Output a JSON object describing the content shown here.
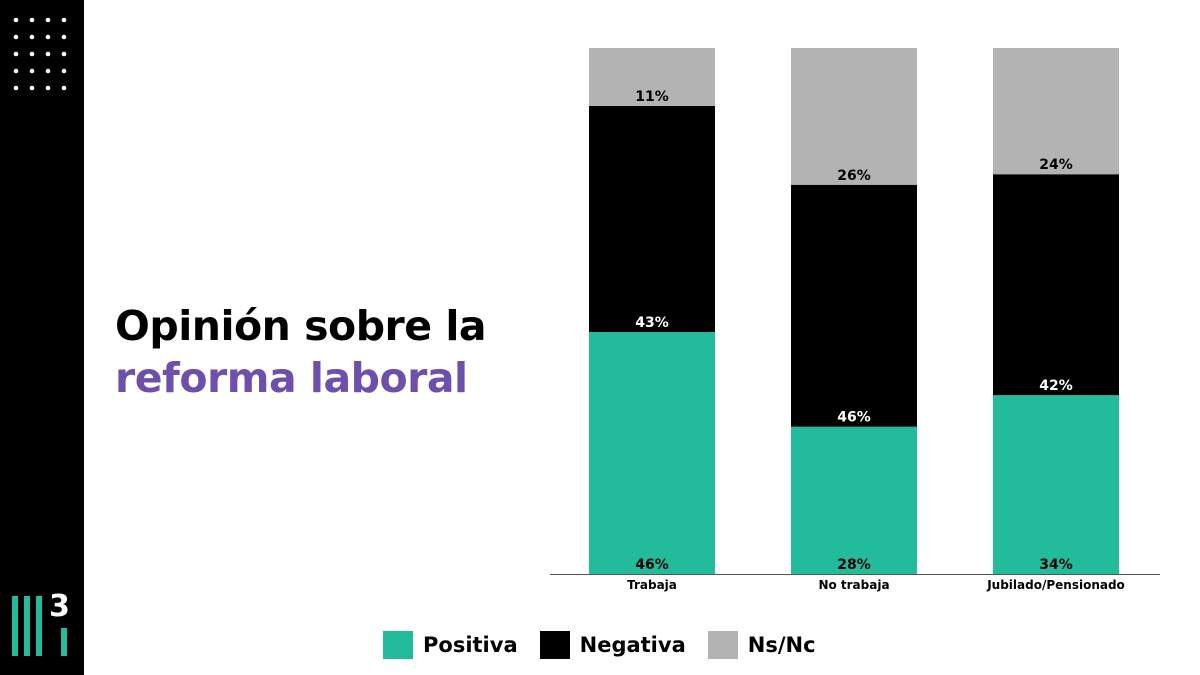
{
  "title": {
    "line1": "Opinión sobre la",
    "line2": "reforma laboral"
  },
  "brand": {
    "logo_number": "3",
    "accent_color": "#6e4fab",
    "sidebar_color": "#000000"
  },
  "legend": [
    {
      "label": "Positiva",
      "color": "#22bb9c"
    },
    {
      "label": "Negativa",
      "color": "#000000"
    },
    {
      "label": "Ns/Nc",
      "color": "#b3b3b3"
    }
  ],
  "chart_data": {
    "type": "bar",
    "stacked": true,
    "categories": [
      "Trabaja",
      "No trabaja",
      "Jubilado/Pensionado"
    ],
    "series": [
      {
        "name": "Positiva",
        "color": "#22bb9c",
        "label_color": "#000000",
        "values": [
          46,
          28,
          34
        ],
        "labels": [
          "46%",
          "28%",
          "34%"
        ]
      },
      {
        "name": "Negativa",
        "color": "#000000",
        "label_color": "#ffffff",
        "values": [
          43,
          46,
          42
        ],
        "labels": [
          "43%",
          "46%",
          "42%"
        ]
      },
      {
        "name": "Ns/Nc",
        "color": "#b3b3b3",
        "label_color": "#000000",
        "values": [
          11,
          26,
          24
        ],
        "labels": [
          "11%",
          "26%",
          "24%"
        ]
      }
    ],
    "ylim": [
      0,
      100
    ],
    "grid": false,
    "legend_position": "bottom"
  }
}
